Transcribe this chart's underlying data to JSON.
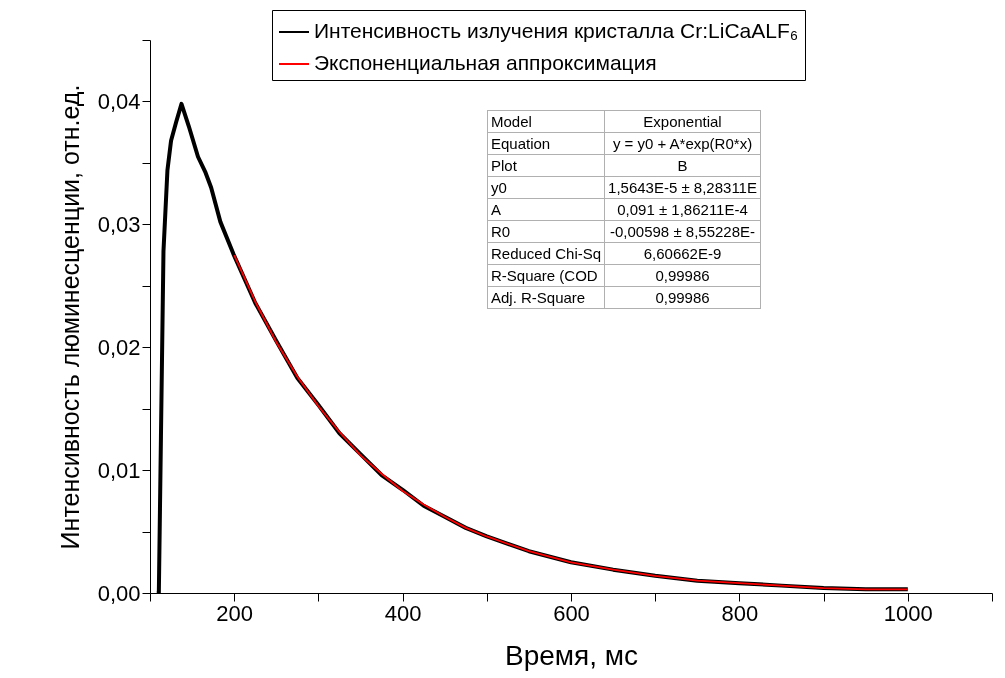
{
  "chart_data": {
    "type": "line",
    "xlabel": "Время, мс",
    "ylabel": "Интенсивность люминесценции, отн.ед.",
    "xlim": [
      100,
      1100
    ],
    "xticks": [
      {
        "value": 100,
        "label": null
      },
      200,
      {
        "value": 300,
        "label": null
      },
      400,
      {
        "value": 500,
        "label": null
      },
      600,
      {
        "value": 700,
        "label": null
      },
      800,
      {
        "value": 900,
        "label": null
      },
      1000,
      {
        "value": 1100,
        "label": null
      }
    ],
    "ylim": [
      0,
      0.045
    ],
    "yticks": [
      {
        "value": 0,
        "label": "0,00"
      },
      {
        "value": 0.005,
        "label": null
      },
      {
        "value": 0.01,
        "label": "0,01"
      },
      {
        "value": 0.015,
        "label": null
      },
      {
        "value": 0.02,
        "label": "0,02"
      },
      {
        "value": 0.025,
        "label": null
      },
      {
        "value": 0.03,
        "label": "0,03"
      },
      {
        "value": 0.035,
        "label": null
      },
      {
        "value": 0.04,
        "label": "0,04"
      },
      {
        "value": 0.045,
        "label": null
      }
    ],
    "legend": "top right",
    "series": [
      {
        "name": "Интенсивность излучения кристалла Cr:LiCaALF₆",
        "color": "#000000",
        "x": [
          108,
          110.5,
          113,
          116,
          120.7,
          125,
          131,
          137.4,
          146,
          157,
          166,
          172.6,
          183.6,
          199,
          225,
          250,
          275,
          300,
          325,
          350,
          375,
          400,
          425,
          450,
          475,
          500,
          550,
          600,
          650,
          700,
          750,
          800,
          850,
          900,
          950,
          1000
        ],
        "values": [
          0,
          0,
          0.0127,
          0.0278,
          0.0344,
          0.0368,
          0.0383,
          0.0398,
          0.038,
          0.0355,
          0.0342,
          0.033,
          0.0302,
          0.0276,
          0.0236,
          0.0205,
          0.0175,
          0.0153,
          0.013,
          0.0113,
          0.0096,
          0.0084,
          0.0071,
          0.0062,
          0.0053,
          0.0046,
          0.0034,
          0.0025,
          0.0019,
          0.0014,
          0.001,
          0.0008,
          0.0006,
          0.0004,
          0.0003,
          0.0003
        ]
      },
      {
        "name": "Экспоненциальная аппроксимация",
        "color": "#ff0000",
        "x": [
          200,
          225,
          250,
          275,
          300,
          325,
          350,
          375,
          400,
          425,
          450,
          475,
          500,
          550,
          600,
          650,
          700,
          750,
          800,
          850,
          900,
          950,
          1000
        ],
        "values": [
          0.0275,
          0.0237,
          0.0204,
          0.0176,
          0.0152,
          0.0131,
          0.0112,
          0.0097,
          0.0083,
          0.0072,
          0.0062,
          0.0053,
          0.0046,
          0.0034,
          0.0025,
          0.0019,
          0.0014,
          0.001,
          0.0008,
          0.0006,
          0.0004,
          0.0003,
          0.0003
        ]
      }
    ],
    "annotations": [
      "Model",
      "Exponential",
      "Equation",
      "y = y0 + A*exp(R0*x)",
      "Plot",
      "B",
      "y0",
      "1,5643E-5 ± 8,28311E",
      "A",
      "0,091 ± 1,86211E-4",
      "R0",
      "-0,00598 ± 8,55228E-",
      "Reduced Chi-Sq",
      "6,60662E-9",
      "R-Square (COD",
      "0,99986",
      "Adj. R-Square",
      "0,99986"
    ]
  }
}
